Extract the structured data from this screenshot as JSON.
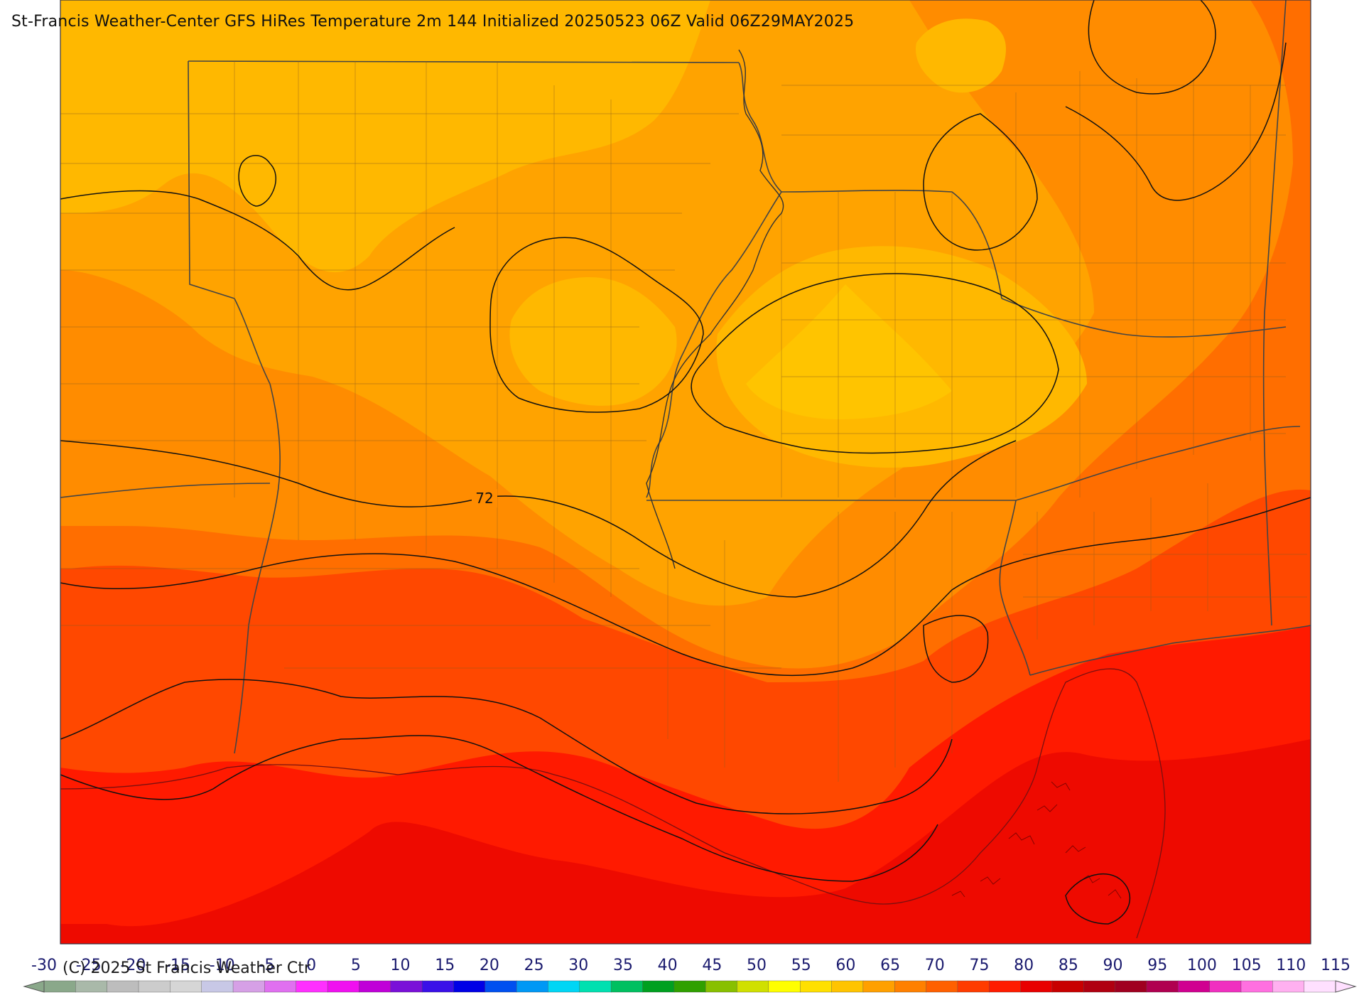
{
  "header": {
    "title": "St-Francis Weather-Center GFS HiRes Temperature 2m  144 Initialized 20250523 06Z Valid 06Z29MAY2025"
  },
  "map": {
    "contour_label": "72",
    "band_colors": {
      "t55": "#ffb800",
      "t60": "#ffa300",
      "t65": "#ff8c00",
      "t70": "#ff6e00",
      "t75": "#ff4800",
      "t80": "#ff1a00",
      "t85": "#ee0a00"
    }
  },
  "legend": {
    "min": -30,
    "max": 115,
    "step": 5,
    "ticks": [
      "-30",
      "-25",
      "-20",
      "-15",
      "-10",
      "-5",
      "0",
      "5",
      "10",
      "15",
      "20",
      "25",
      "30",
      "35",
      "40",
      "45",
      "50",
      "55",
      "60",
      "65",
      "70",
      "75",
      "80",
      "85",
      "90",
      "95",
      "100",
      "105",
      "110",
      "115"
    ],
    "colors": [
      "#8aa88a",
      "#a9b9a9",
      "#bdbdbd",
      "#cccccc",
      "#d6d6d6",
      "#c8c8e6",
      "#d6a0e6",
      "#e070f0",
      "#ff30ff",
      "#f010f0",
      "#c000d8",
      "#7a10d8",
      "#3a10e8",
      "#0000e6",
      "#0050f0",
      "#0098f5",
      "#00d6f5",
      "#00e0b0",
      "#00c060",
      "#00a020",
      "#30a000",
      "#88c000",
      "#d0e000",
      "#ffff00",
      "#ffe000",
      "#ffc400",
      "#ffa000",
      "#ff8000",
      "#ff6000",
      "#ff3c00",
      "#ff1c00",
      "#e80000",
      "#c80000",
      "#b00010",
      "#a00020",
      "#b00050",
      "#d00090",
      "#f030c0",
      "#ff70e0",
      "#ffb0f0",
      "#ffe0ff"
    ]
  },
  "footer": {
    "copyright": "(C) 2025 St Francis Weather Ctr"
  }
}
